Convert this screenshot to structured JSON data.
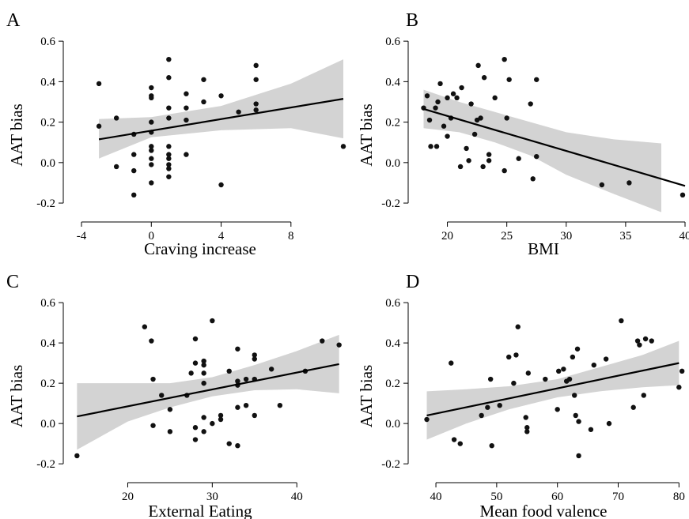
{
  "chart_data": [
    {
      "type": "scatter",
      "panel": "A",
      "xlabel": "Craving increase",
      "ylabel": "AAT bias",
      "xlim": [
        -4.5,
        11
      ],
      "ylim": [
        -0.27,
        0.62
      ],
      "xticks": [
        -4,
        0,
        4,
        8
      ],
      "yticks": [
        -0.2,
        0.0,
        0.2,
        0.4,
        0.6
      ],
      "ytick_labels": [
        "-0.2",
        "0.0",
        "0.2",
        "0.4",
        "0.6"
      ],
      "fit": {
        "x": [
          -3,
          11
        ],
        "y": [
          0.115,
          0.315
        ]
      },
      "ci": {
        "x": [
          -3,
          0,
          4,
          8,
          11
        ],
        "upper": [
          0.215,
          0.225,
          0.28,
          0.39,
          0.51
        ],
        "lower": [
          0.02,
          0.125,
          0.16,
          0.17,
          0.12
        ]
      },
      "points": [
        {
          "x": -3,
          "y": 0.39
        },
        {
          "x": -3,
          "y": 0.18
        },
        {
          "x": -2,
          "y": 0.22
        },
        {
          "x": -2,
          "y": -0.02
        },
        {
          "x": -1,
          "y": 0.14
        },
        {
          "x": -1,
          "y": 0.04
        },
        {
          "x": -1,
          "y": -0.04
        },
        {
          "x": -1,
          "y": -0.16
        },
        {
          "x": 0,
          "y": 0.37
        },
        {
          "x": 0,
          "y": 0.33
        },
        {
          "x": 0,
          "y": 0.32
        },
        {
          "x": 0,
          "y": 0.2
        },
        {
          "x": 0,
          "y": 0.15
        },
        {
          "x": 0,
          "y": 0.08
        },
        {
          "x": 0,
          "y": 0.06
        },
        {
          "x": 0,
          "y": 0.02
        },
        {
          "x": 0,
          "y": -0.01
        },
        {
          "x": 0,
          "y": -0.1
        },
        {
          "x": 1,
          "y": 0.51
        },
        {
          "x": 1,
          "y": 0.42
        },
        {
          "x": 1,
          "y": 0.27
        },
        {
          "x": 1,
          "y": 0.22
        },
        {
          "x": 1,
          "y": 0.08
        },
        {
          "x": 1,
          "y": 0.04
        },
        {
          "x": 1,
          "y": 0.02
        },
        {
          "x": 1,
          "y": -0.01
        },
        {
          "x": 1,
          "y": -0.03
        },
        {
          "x": 1,
          "y": -0.07
        },
        {
          "x": 2,
          "y": 0.34
        },
        {
          "x": 2,
          "y": 0.27
        },
        {
          "x": 2,
          "y": 0.21
        },
        {
          "x": 2,
          "y": 0.04
        },
        {
          "x": 3,
          "y": 0.41
        },
        {
          "x": 3,
          "y": 0.3
        },
        {
          "x": 4,
          "y": 0.33
        },
        {
          "x": 4,
          "y": -0.11
        },
        {
          "x": 5,
          "y": 0.25
        },
        {
          "x": 6,
          "y": 0.48
        },
        {
          "x": 6,
          "y": 0.41
        },
        {
          "x": 6,
          "y": 0.29
        },
        {
          "x": 6,
          "y": 0.26
        },
        {
          "x": 11,
          "y": 0.08
        }
      ]
    },
    {
      "type": "scatter",
      "panel": "B",
      "xlabel": "BMI",
      "ylabel": "AAT bias",
      "xlim": [
        17.5,
        40
      ],
      "ylim": [
        -0.27,
        0.62
      ],
      "xticks": [
        20,
        25,
        30,
        35,
        40
      ],
      "yticks": [
        -0.2,
        0.0,
        0.2,
        0.4,
        0.6
      ],
      "ytick_labels": [
        "-0.2",
        "0.0",
        "0.2",
        "0.4",
        "0.6"
      ],
      "fit": {
        "x": [
          18,
          40
        ],
        "y": [
          0.265,
          -0.115
        ]
      },
      "ci": {
        "x": [
          18,
          21,
          24,
          27,
          30,
          34,
          38
        ],
        "upper": [
          0.36,
          0.3,
          0.25,
          0.2,
          0.15,
          0.115,
          0.095
        ],
        "lower": [
          0.17,
          0.15,
          0.1,
          0.035,
          -0.06,
          -0.155,
          -0.245
        ]
      },
      "points": [
        {
          "x": 18.0,
          "y": 0.27
        },
        {
          "x": 18.3,
          "y": 0.33
        },
        {
          "x": 18.5,
          "y": 0.21
        },
        {
          "x": 18.6,
          "y": 0.08
        },
        {
          "x": 19.0,
          "y": 0.27
        },
        {
          "x": 19.1,
          "y": 0.08
        },
        {
          "x": 19.2,
          "y": 0.3
        },
        {
          "x": 19.4,
          "y": 0.39
        },
        {
          "x": 19.7,
          "y": 0.18
        },
        {
          "x": 20.0,
          "y": 0.32
        },
        {
          "x": 20.0,
          "y": 0.13
        },
        {
          "x": 20.3,
          "y": 0.22
        },
        {
          "x": 20.5,
          "y": 0.34
        },
        {
          "x": 20.8,
          "y": 0.32
        },
        {
          "x": 21.1,
          "y": -0.02
        },
        {
          "x": 21.2,
          "y": 0.37
        },
        {
          "x": 21.6,
          "y": 0.07
        },
        {
          "x": 21.8,
          "y": 0.01
        },
        {
          "x": 22.0,
          "y": 0.29
        },
        {
          "x": 22.3,
          "y": 0.14
        },
        {
          "x": 22.5,
          "y": 0.21
        },
        {
          "x": 22.6,
          "y": 0.48
        },
        {
          "x": 22.8,
          "y": 0.22
        },
        {
          "x": 23.0,
          "y": -0.02
        },
        {
          "x": 23.1,
          "y": 0.42
        },
        {
          "x": 23.5,
          "y": 0.01
        },
        {
          "x": 23.5,
          "y": 0.04
        },
        {
          "x": 24.0,
          "y": 0.32
        },
        {
          "x": 24.8,
          "y": 0.51
        },
        {
          "x": 24.8,
          "y": -0.04
        },
        {
          "x": 25.0,
          "y": 0.22
        },
        {
          "x": 25.2,
          "y": 0.41
        },
        {
          "x": 26.0,
          "y": 0.02
        },
        {
          "x": 27.0,
          "y": 0.29
        },
        {
          "x": 27.2,
          "y": -0.08
        },
        {
          "x": 27.5,
          "y": 0.41
        },
        {
          "x": 27.5,
          "y": 0.03
        },
        {
          "x": 33.0,
          "y": -0.11
        },
        {
          "x": 35.3,
          "y": -0.1
        },
        {
          "x": 39.8,
          "y": -0.16
        }
      ]
    },
    {
      "type": "scatter",
      "panel": "C",
      "xlabel": "External Eating",
      "ylabel": "AAT bias",
      "xlim": [
        13.5,
        45.5
      ],
      "ylim": [
        -0.27,
        0.62
      ],
      "xticks": [
        20,
        30,
        40
      ],
      "yticks": [
        -0.2,
        0.0,
        0.2,
        0.4,
        0.6
      ],
      "ytick_labels": [
        "-0.2",
        "0.0",
        "0.2",
        "0.4",
        "0.6"
      ],
      "fit": {
        "x": [
          14,
          45
        ],
        "y": [
          0.035,
          0.295
        ]
      },
      "ci": {
        "x": [
          14,
          20,
          25,
          30,
          35,
          40,
          45
        ],
        "upper": [
          0.2,
          0.2,
          0.2,
          0.23,
          0.29,
          0.36,
          0.44
        ],
        "lower": [
          -0.13,
          0.01,
          0.08,
          0.135,
          0.165,
          0.17,
          0.15
        ]
      },
      "points": [
        {
          "x": 14,
          "y": -0.16
        },
        {
          "x": 22,
          "y": 0.48
        },
        {
          "x": 22.8,
          "y": 0.41
        },
        {
          "x": 23,
          "y": 0.22
        },
        {
          "x": 23,
          "y": -0.01
        },
        {
          "x": 24,
          "y": 0.14
        },
        {
          "x": 25,
          "y": 0.07
        },
        {
          "x": 25,
          "y": -0.04
        },
        {
          "x": 27,
          "y": 0.14
        },
        {
          "x": 27.5,
          "y": 0.25
        },
        {
          "x": 28,
          "y": 0.42
        },
        {
          "x": 28,
          "y": 0.3
        },
        {
          "x": 28,
          "y": -0.02
        },
        {
          "x": 28,
          "y": -0.08
        },
        {
          "x": 29,
          "y": 0.31
        },
        {
          "x": 29,
          "y": 0.29
        },
        {
          "x": 29,
          "y": 0.25
        },
        {
          "x": 29,
          "y": 0.2
        },
        {
          "x": 29,
          "y": 0.03
        },
        {
          "x": 29,
          "y": -0.04
        },
        {
          "x": 30,
          "y": 0.51
        },
        {
          "x": 30,
          "y": 0.0
        },
        {
          "x": 31,
          "y": 0.04
        },
        {
          "x": 31,
          "y": 0.02
        },
        {
          "x": 32,
          "y": 0.26
        },
        {
          "x": 32,
          "y": -0.1
        },
        {
          "x": 33,
          "y": 0.37
        },
        {
          "x": 33,
          "y": 0.21
        },
        {
          "x": 33,
          "y": 0.19
        },
        {
          "x": 33,
          "y": 0.08
        },
        {
          "x": 33,
          "y": -0.11
        },
        {
          "x": 34,
          "y": 0.22
        },
        {
          "x": 34,
          "y": 0.09
        },
        {
          "x": 35,
          "y": 0.34
        },
        {
          "x": 35,
          "y": 0.32
        },
        {
          "x": 35,
          "y": 0.22
        },
        {
          "x": 35,
          "y": 0.04
        },
        {
          "x": 37,
          "y": 0.27
        },
        {
          "x": 38,
          "y": 0.09
        },
        {
          "x": 41,
          "y": 0.26
        },
        {
          "x": 43,
          "y": 0.41
        },
        {
          "x": 45,
          "y": 0.39
        }
      ]
    },
    {
      "type": "scatter",
      "panel": "D",
      "xlabel": "Mean food valence",
      "ylabel": "AAT bias",
      "xlim": [
        37,
        81
      ],
      "ylim": [
        -0.27,
        0.62
      ],
      "xticks": [
        40,
        50,
        60,
        70,
        80
      ],
      "yticks": [
        -0.2,
        0.0,
        0.2,
        0.4,
        0.6
      ],
      "ytick_labels": [
        "-0.2",
        "0.0",
        "0.2",
        "0.4",
        "0.6"
      ],
      "fit": {
        "x": [
          38.5,
          80
        ],
        "y": [
          0.04,
          0.3
        ]
      },
      "ci": {
        "x": [
          38.5,
          45,
          52,
          60,
          67,
          74,
          80
        ],
        "upper": [
          0.16,
          0.17,
          0.185,
          0.22,
          0.28,
          0.34,
          0.41
        ],
        "lower": [
          -0.08,
          0.0,
          0.07,
          0.13,
          0.16,
          0.18,
          0.19
        ]
      },
      "points": [
        {
          "x": 38.5,
          "y": 0.02
        },
        {
          "x": 42.5,
          "y": 0.3
        },
        {
          "x": 43,
          "y": -0.08
        },
        {
          "x": 44,
          "y": -0.1
        },
        {
          "x": 47.5,
          "y": 0.04
        },
        {
          "x": 48.5,
          "y": 0.08
        },
        {
          "x": 49,
          "y": 0.22
        },
        {
          "x": 49.2,
          "y": -0.11
        },
        {
          "x": 50.5,
          "y": 0.09
        },
        {
          "x": 52,
          "y": 0.33
        },
        {
          "x": 52.8,
          "y": 0.2
        },
        {
          "x": 53.2,
          "y": 0.34
        },
        {
          "x": 53.5,
          "y": 0.48
        },
        {
          "x": 54.8,
          "y": 0.03
        },
        {
          "x": 55,
          "y": -0.02
        },
        {
          "x": 55,
          "y": -0.04
        },
        {
          "x": 55.2,
          "y": 0.25
        },
        {
          "x": 58,
          "y": 0.22
        },
        {
          "x": 60,
          "y": 0.07
        },
        {
          "x": 60.2,
          "y": 0.26
        },
        {
          "x": 61,
          "y": 0.27
        },
        {
          "x": 61.5,
          "y": 0.21
        },
        {
          "x": 62,
          "y": 0.22
        },
        {
          "x": 62.5,
          "y": 0.33
        },
        {
          "x": 62.8,
          "y": 0.14
        },
        {
          "x": 63,
          "y": 0.04
        },
        {
          "x": 63.3,
          "y": 0.37
        },
        {
          "x": 63.5,
          "y": 0.01
        },
        {
          "x": 63.5,
          "y": -0.16
        },
        {
          "x": 65.5,
          "y": -0.03
        },
        {
          "x": 66,
          "y": 0.29
        },
        {
          "x": 68,
          "y": 0.32
        },
        {
          "x": 68.5,
          "y": 0.0
        },
        {
          "x": 70.5,
          "y": 0.51
        },
        {
          "x": 72.5,
          "y": 0.08
        },
        {
          "x": 73.2,
          "y": 0.41
        },
        {
          "x": 73.5,
          "y": 0.39
        },
        {
          "x": 74.2,
          "y": 0.14
        },
        {
          "x": 74.5,
          "y": 0.42
        },
        {
          "x": 75.5,
          "y": 0.41
        },
        {
          "x": 80,
          "y": 0.18
        },
        {
          "x": 80.5,
          "y": 0.26
        }
      ]
    }
  ]
}
